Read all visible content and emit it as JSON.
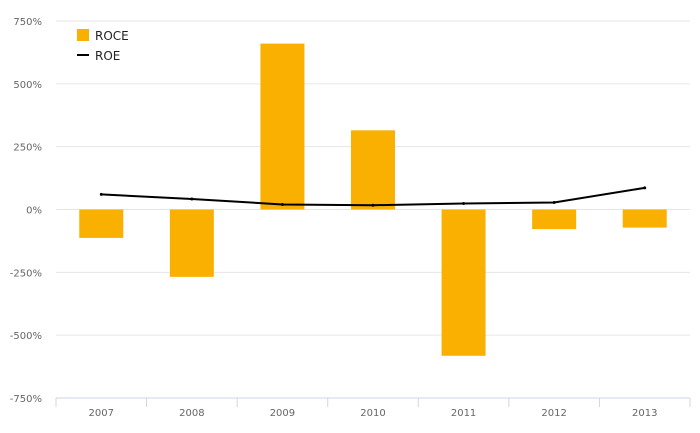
{
  "chart_data": {
    "type": "bar",
    "categories": [
      "2007",
      "2008",
      "2009",
      "2010",
      "2011",
      "2012",
      "2013"
    ],
    "series": [
      {
        "name": "ROCE",
        "type": "bar",
        "color": "#f9b000",
        "values": [
          -113,
          -268,
          660,
          315,
          -582,
          -78,
          -72
        ]
      },
      {
        "name": "ROE",
        "type": "line",
        "color": "#000000",
        "values": [
          60,
          42,
          20,
          17,
          24,
          28,
          86
        ]
      }
    ],
    "ylim": [
      -750,
      750
    ],
    "yticks": [
      -750,
      -500,
      -250,
      0,
      250,
      500,
      750
    ],
    "ytick_labels": [
      "-750%",
      "-500%",
      "-250%",
      "0%",
      "250%",
      "500%",
      "750%"
    ],
    "grid": true,
    "legend_position": "top-left"
  }
}
